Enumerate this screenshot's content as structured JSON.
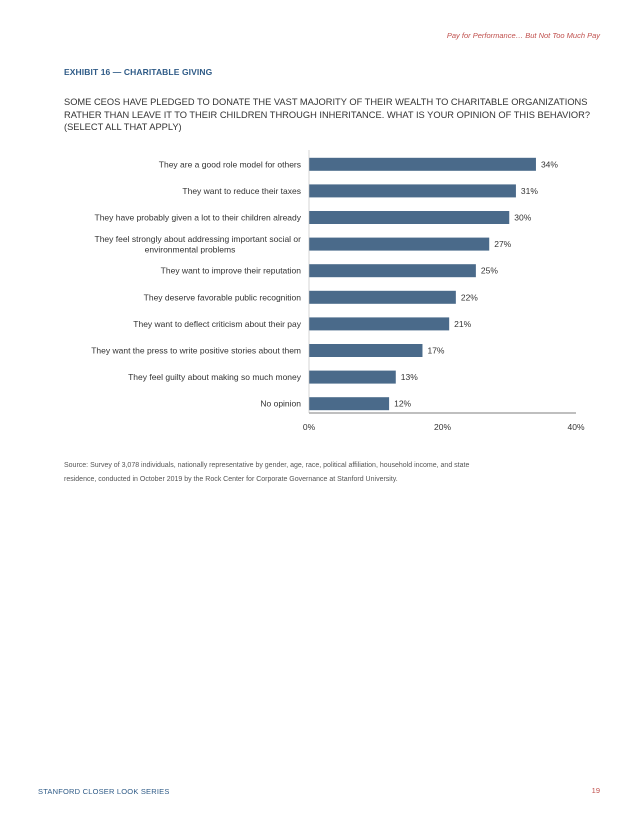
{
  "header": {
    "running_head": "Pay for Performance… But Not Too Much Pay"
  },
  "exhibit": {
    "label": "EXHIBIT 16 — CHARITABLE GIVING",
    "question_lines": [
      "SOME CEOS HAVE PLEDGED TO DONATE THE VAST MAJORITY OF THEIR WEALTH TO CHARITABLE ORGANIZATIONS",
      "RATHER THAN LEAVE IT TO THEIR CHILDREN THROUGH INHERITANCE. WHAT IS YOUR OPINION OF THIS BEHAVIOR?",
      "(SELECT ALL THAT APPLY)"
    ]
  },
  "chart_data": {
    "type": "bar",
    "orientation": "horizontal",
    "categories": [
      "They are a good role model for others",
      "They want to reduce their taxes",
      "They have probably given a lot to their children already",
      "They feel strongly about addressing important social or environmental problems",
      "They want to improve their reputation",
      "They deserve favorable public recognition",
      "They want to deflect criticism about their pay",
      "They want the press to write positive stories about them",
      "They feel guilty about making so much money",
      "No opinion"
    ],
    "category_label_lines": [
      [
        "They are a good role model for others"
      ],
      [
        "They want to reduce their taxes"
      ],
      [
        "They have probably given a lot to their children already"
      ],
      [
        "They feel strongly about addressing important social or",
        "environmental problems"
      ],
      [
        "They want to improve their reputation"
      ],
      [
        "They deserve favorable public recognition"
      ],
      [
        "They want to deflect criticism about their pay"
      ],
      [
        "They want the press to write positive stories about them"
      ],
      [
        "They feel guilty about making so much money"
      ],
      [
        "No opinion"
      ]
    ],
    "values": [
      34,
      31,
      30,
      27,
      25,
      22,
      21,
      17,
      13,
      12
    ],
    "value_labels": [
      "34%",
      "31%",
      "30%",
      "27%",
      "25%",
      "22%",
      "21%",
      "17%",
      "13%",
      "12%"
    ],
    "x_ticks": [
      0,
      20,
      40
    ],
    "x_tick_labels": [
      "0%",
      "20%",
      "40%"
    ],
    "xlim": [
      0,
      40
    ],
    "grid": false,
    "bar_color": "#4a6a8a"
  },
  "source_note": {
    "lines": [
      "Source: Survey of 3,078 individuals, nationally representative by gender, age, race, political affiliation, household income, and state",
      "residence, conducted in October 2019 by the Rock Center for Corporate Governance at Stanford University."
    ]
  },
  "footer": {
    "series_name": "STANFORD CLOSER LOOK SERIES",
    "page_number": "19"
  },
  "colors": {
    "accent_red": "#c0504d",
    "heading_blue": "#2f5b87"
  }
}
